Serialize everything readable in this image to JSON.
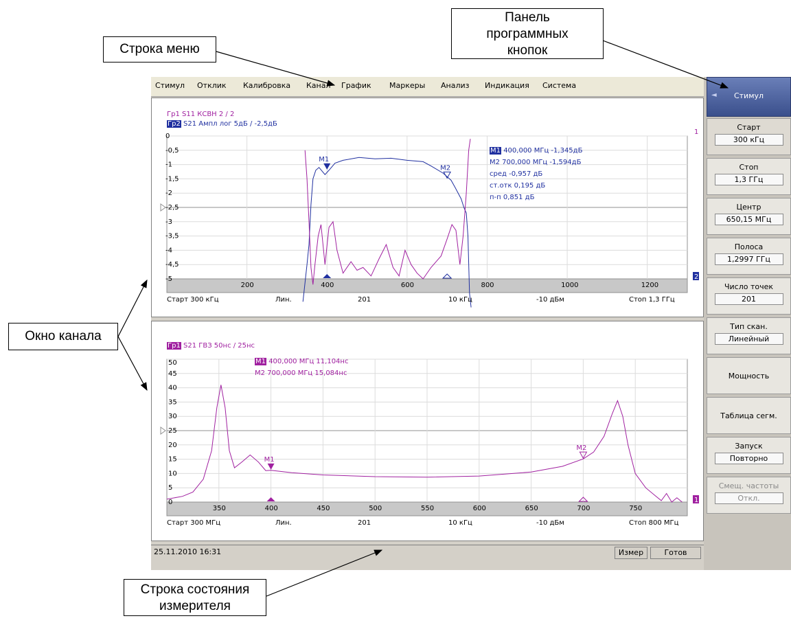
{
  "callouts": {
    "menu": "Строка меню",
    "softkeys_1": "Панель",
    "softkeys_2": "программных",
    "softkeys_3": "кнопок",
    "channel": "Окно канала",
    "status_1": "Строка состояния",
    "status_2": "измерителя"
  },
  "menu": [
    "Стимул",
    "Отклик",
    "Калибровка",
    "Канал",
    "График",
    "Маркеры",
    "Анализ",
    "Индикация",
    "Система"
  ],
  "top_chart": {
    "trace1_label": "Гр1 S11  КСВН  2 / 2",
    "trace2_prefix": "Гр2",
    "trace2_label": "S21  Ампл лог  5дБ / -2,5дБ",
    "y_ticks": [
      "0",
      "-0,5",
      "-1",
      "-1,5",
      "-2",
      "-2,5",
      "-3",
      "-3,5",
      "-4",
      "-4,5",
      "-5"
    ],
    "x_ticks": [
      "200",
      "400",
      "600",
      "800",
      "1000",
      "1200"
    ],
    "scale_left_marker": "1",
    "scale_right_marker": "2",
    "marker_m1": "M1",
    "marker_m2": "M2",
    "readout_m1_tag": "M1",
    "readout_m1": "400,000 МГц  -1,345дБ",
    "readout_m2": "M2 700,000 МГц  -1,594дБ",
    "readout_mean": "сред -0,957 дБ",
    "readout_std": "ст.отк 0,195 дБ",
    "readout_pp": "п-п 0,851 дБ",
    "footer": [
      "Старт  300 кГц",
      "Лин.",
      "201",
      "10 кГц",
      "-10 дБм",
      "Стоп  1,3 ГГц"
    ],
    "colors": {
      "s11": "#a020a0",
      "s21": "#2030a0"
    }
  },
  "bottom_chart": {
    "trace1_prefix": "Гр1",
    "trace1_label": "S21  ГВЗ  50нс / 25нс",
    "y_ticks": [
      "50",
      "45",
      "40",
      "35",
      "30",
      "25",
      "20",
      "15",
      "10",
      "5",
      "0"
    ],
    "x_ticks": [
      "350",
      "400",
      "450",
      "500",
      "550",
      "600",
      "650",
      "700",
      "750"
    ],
    "scale_right_marker": "1",
    "marker_m1": "M1",
    "marker_m2": "M2",
    "readout_m1_tag": "M1",
    "readout_m1": "400,000 МГц  11,104нс",
    "readout_m2": "M2 700,000 МГц  15,084нс",
    "footer": [
      "Старт  300 МГц",
      "Лин.",
      "201",
      "10 кГц",
      "-10 дБм",
      "Стоп  800 МГц"
    ]
  },
  "status": {
    "datetime": "25.11.2010 16:31",
    "meas": "Измер",
    "ready": "Готов"
  },
  "softkeys": {
    "header": "Стимул",
    "items": [
      {
        "title": "Старт",
        "value": "300 кГц"
      },
      {
        "title": "Стоп",
        "value": "1,3 ГГц"
      },
      {
        "title": "Центр",
        "value": "650,15 МГц"
      },
      {
        "title": "Полоса",
        "value": "1,2997 ГГц"
      },
      {
        "title": "Число точек",
        "value": "201"
      },
      {
        "title": "Тип скан.",
        "value": "Линейный"
      },
      {
        "title": "Мощность",
        "value": ""
      },
      {
        "title": "Таблица сегм.",
        "value": ""
      },
      {
        "title": "Запуск",
        "value": "Повторно"
      },
      {
        "title": "Смещ. частоты",
        "value": "Откл."
      }
    ]
  }
}
